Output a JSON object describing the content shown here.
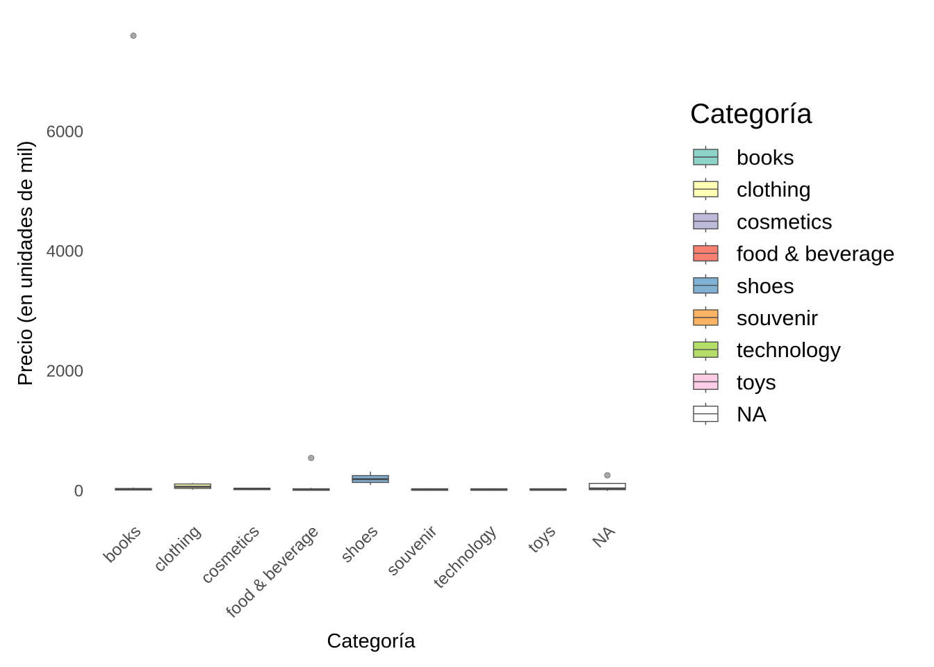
{
  "chart_data": {
    "type": "boxplot",
    "xlabel": "Categoría",
    "ylabel": "Precio (en unidades de  mil)",
    "ylim": [
      -200,
      7700
    ],
    "yticks": [
      0,
      2000,
      4000,
      6000
    ],
    "grid": false,
    "legend_position": "right",
    "legend_title": "Categoría",
    "categories": [
      "books",
      "clothing",
      "cosmetics",
      "food & beverage",
      "shoes",
      "souvenir",
      "technology",
      "toys",
      "NA"
    ],
    "colors": [
      "#8DD3C7",
      "#FFFFB3",
      "#BEBADA",
      "#FB8072",
      "#80B1D3",
      "#FDB462",
      "#B3DE69",
      "#FCCDE5",
      "#FFFFFF"
    ],
    "boxes": [
      {
        "category": "books",
        "min": 10,
        "q1": 15,
        "median": 25,
        "q3": 40,
        "max": 55,
        "outliers": [
          7600
        ]
      },
      {
        "category": "clothing",
        "min": 20,
        "q1": 40,
        "median": 70,
        "q3": 115,
        "max": 130,
        "outliers": []
      },
      {
        "category": "cosmetics",
        "min": 10,
        "q1": 20,
        "median": 35,
        "q3": 45,
        "max": 55,
        "outliers": []
      },
      {
        "category": "food & beverage",
        "min": 5,
        "q1": 10,
        "median": 20,
        "q3": 35,
        "max": 50,
        "outliers": [
          550
        ]
      },
      {
        "category": "shoes",
        "min": 100,
        "q1": 140,
        "median": 195,
        "q3": 255,
        "max": 320,
        "outliers": []
      },
      {
        "category": "souvenir",
        "min": 5,
        "q1": 10,
        "median": 20,
        "q3": 35,
        "max": 45,
        "outliers": []
      },
      {
        "category": "technology",
        "min": 5,
        "q1": 10,
        "median": 20,
        "q3": 35,
        "max": 45,
        "outliers": []
      },
      {
        "category": "toys",
        "min": 5,
        "q1": 10,
        "median": 20,
        "q3": 35,
        "max": 45,
        "outliers": []
      },
      {
        "category": "NA",
        "min": 0,
        "q1": 20,
        "median": 40,
        "q3": 125,
        "max": 130,
        "outliers": [
          260
        ]
      }
    ]
  }
}
